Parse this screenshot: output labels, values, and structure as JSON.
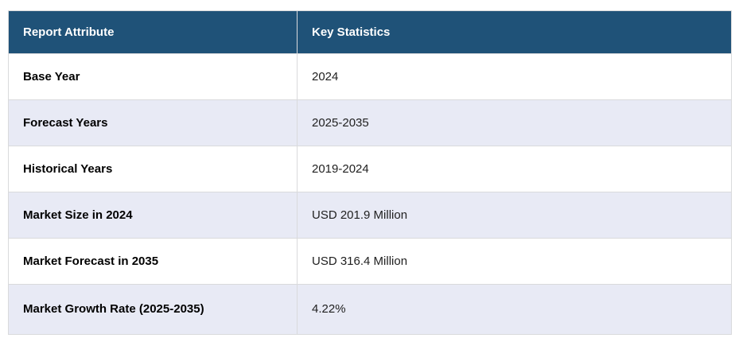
{
  "table": {
    "columns": {
      "attribute_header": "Report Attribute",
      "statistics_header": "Key Statistics"
    },
    "rows": [
      {
        "attribute": "Base Year",
        "value": "2024"
      },
      {
        "attribute": "Forecast Years",
        "value": "2025-2035"
      },
      {
        "attribute": "Historical Years",
        "value": "2019-2024"
      },
      {
        "attribute": "Market Size in 2024",
        "value": "USD 201.9 Million"
      },
      {
        "attribute": "Market Forecast in 2035",
        "value": "USD 316.4 Million"
      },
      {
        "attribute": "Market Growth Rate (2025-2035)",
        "value": "4.22%"
      }
    ],
    "colors": {
      "header_bg": "#1f5278",
      "header_text": "#ffffff",
      "stripe_bg": "#e8eaf5",
      "border": "#d9dadc"
    }
  }
}
